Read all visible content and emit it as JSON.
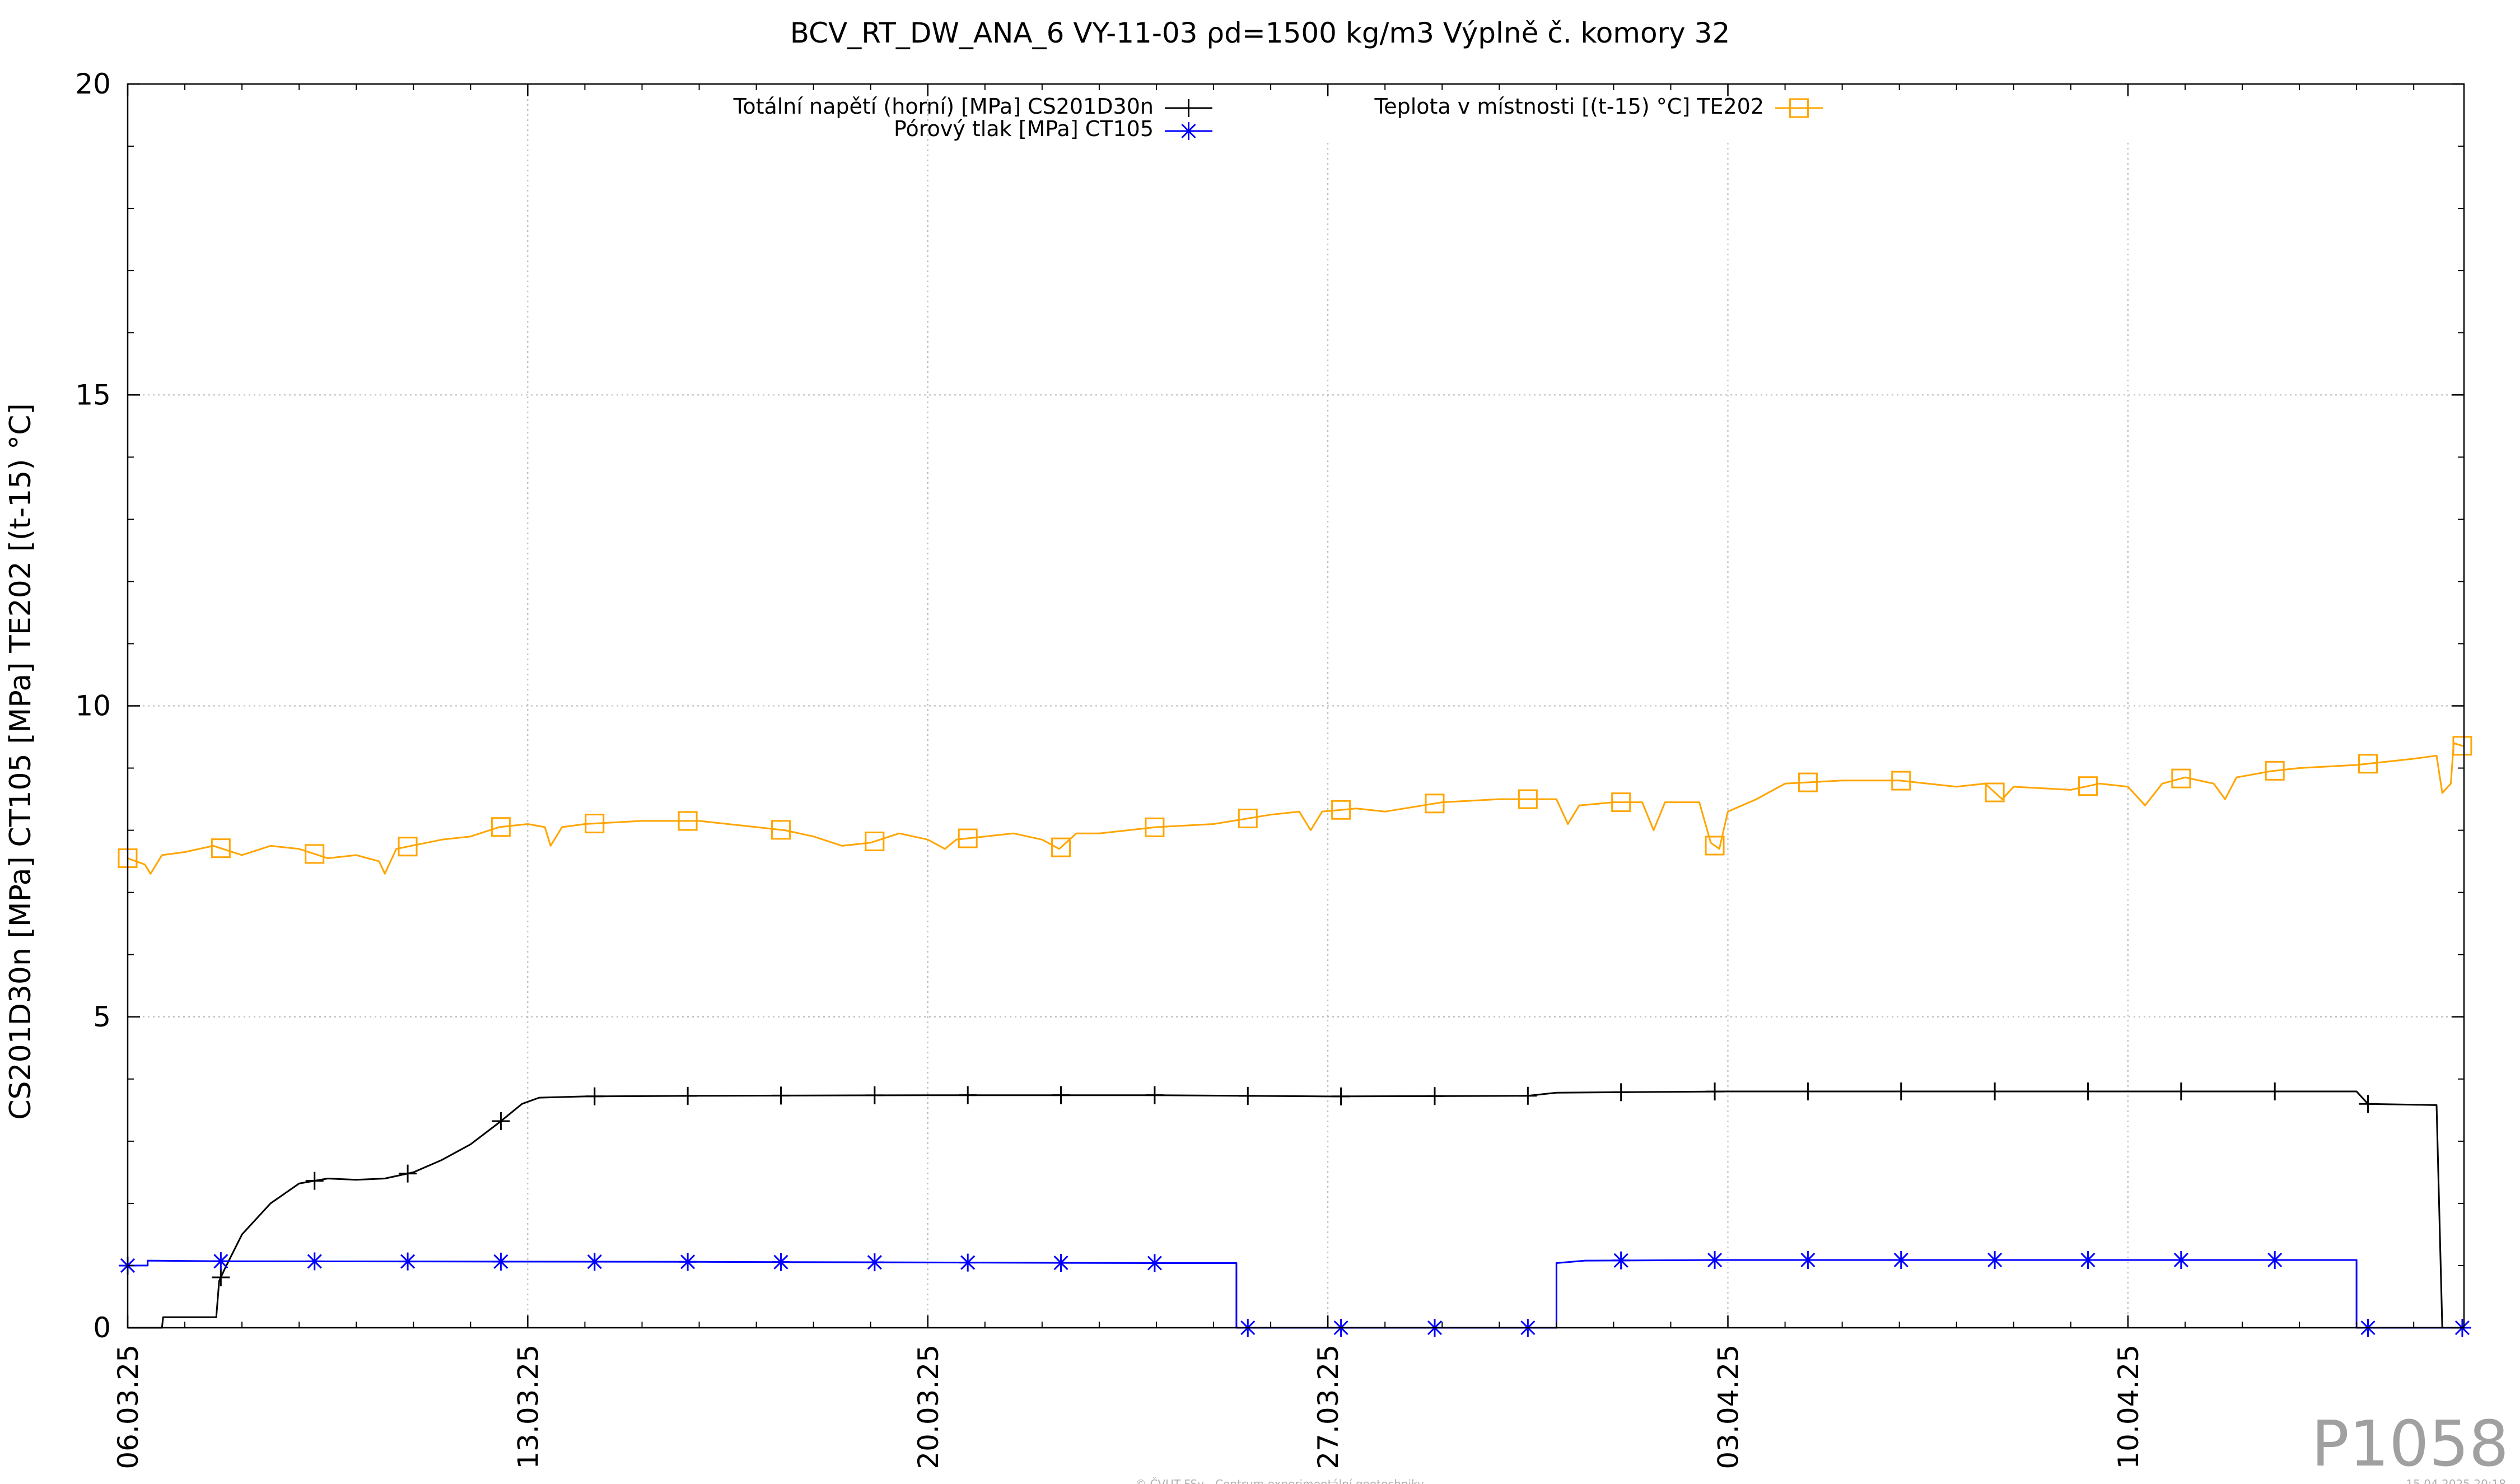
{
  "chart_data": {
    "type": "line",
    "title": "BCV_RT_DW_ANA_6 VY-11-03 ρd=1500 kg/m3 Výplně č. komory 32",
    "ylabel": "CS201D30n [MPa] CT105 [MPa] TE202 [(t-15) °C]",
    "xlabel": "",
    "x_unit": "days since 06.03.25",
    "xlim": [
      0,
      40.88
    ],
    "ylim": [
      0,
      20
    ],
    "y_ticks": [
      "0",
      "5",
      "10",
      "15",
      "20"
    ],
    "x_ticks": [
      {
        "x": 0,
        "label": "06.03.25"
      },
      {
        "x": 7,
        "label": "13.03.25"
      },
      {
        "x": 14,
        "label": "20.03.25"
      },
      {
        "x": 21,
        "label": "27.03.25"
      },
      {
        "x": 28,
        "label": "03.04.25"
      },
      {
        "x": 35,
        "label": "10.04.25"
      }
    ],
    "grid": true,
    "legend_placement": "top-center",
    "series": [
      {
        "name": "Totální napětí (horní) [MPa] CS201D30n",
        "color": "#000000",
        "marker": "plus",
        "points": [
          [
            0,
            0
          ],
          [
            0.6,
            0
          ],
          [
            0.62,
            0.17
          ],
          [
            1.55,
            0.17
          ],
          [
            1.6,
            0.75
          ],
          [
            1.7,
            0.95
          ],
          [
            2.0,
            1.5
          ],
          [
            2.5,
            2.0
          ],
          [
            3.0,
            2.32
          ],
          [
            3.5,
            2.4
          ],
          [
            4.0,
            2.38
          ],
          [
            4.5,
            2.4
          ],
          [
            5.0,
            2.5
          ],
          [
            5.5,
            2.7
          ],
          [
            6.0,
            2.95
          ],
          [
            6.5,
            3.3
          ],
          [
            6.9,
            3.6
          ],
          [
            7.2,
            3.7
          ],
          [
            8,
            3.72
          ],
          [
            10,
            3.73
          ],
          [
            14,
            3.74
          ],
          [
            18,
            3.74
          ],
          [
            21,
            3.72
          ],
          [
            24.5,
            3.73
          ],
          [
            25,
            3.78
          ],
          [
            28,
            3.8
          ],
          [
            32,
            3.8
          ],
          [
            36,
            3.8
          ],
          [
            39,
            3.8
          ],
          [
            39.2,
            3.6
          ],
          [
            40.4,
            3.58
          ],
          [
            40.5,
            0
          ],
          [
            40.88,
            0
          ]
        ],
        "marker_x": [
          1.63,
          3.27,
          4.9,
          6.53,
          8.17,
          9.8,
          11.43,
          13.07,
          14.7,
          16.33,
          17.97,
          19.6,
          21.23,
          22.87,
          24.5,
          26.13,
          27.77,
          29.4,
          31.03,
          32.67,
          34.3,
          35.93,
          37.57,
          39.2
        ]
      },
      {
        "name": "Pórový tlak [MPa] CT105",
        "color": "#0000ff",
        "marker": "star",
        "points": [
          [
            0,
            1.0
          ],
          [
            0.35,
            1.0
          ],
          [
            0.35,
            1.08
          ],
          [
            1.63,
            1.07
          ],
          [
            10,
            1.06
          ],
          [
            18,
            1.04
          ],
          [
            19.4,
            1.04
          ],
          [
            19.4,
            0
          ],
          [
            25.0,
            0
          ],
          [
            25.0,
            1.04
          ],
          [
            25.5,
            1.08
          ],
          [
            28,
            1.09
          ],
          [
            39.0,
            1.09
          ],
          [
            39.0,
            0
          ],
          [
            40.88,
            0
          ]
        ],
        "marker_x": [
          0,
          1.63,
          3.27,
          4.9,
          6.53,
          8.17,
          9.8,
          11.43,
          13.07,
          14.7,
          16.33,
          17.97,
          19.6,
          21.23,
          22.87,
          24.5,
          26.13,
          27.77,
          29.4,
          31.03,
          32.67,
          34.3,
          35.93,
          37.57,
          39.2,
          40.85
        ]
      },
      {
        "name": "Teplota v místnosti [(t-15) °C] TE202",
        "color": "#ffa500",
        "marker": "square",
        "points": [
          [
            0,
            7.55
          ],
          [
            0.3,
            7.45
          ],
          [
            0.4,
            7.3
          ],
          [
            0.6,
            7.6
          ],
          [
            1.0,
            7.65
          ],
          [
            1.5,
            7.75
          ],
          [
            2.0,
            7.6
          ],
          [
            2.5,
            7.75
          ],
          [
            3.0,
            7.7
          ],
          [
            3.5,
            7.55
          ],
          [
            4.0,
            7.6
          ],
          [
            4.4,
            7.5
          ],
          [
            4.5,
            7.3
          ],
          [
            4.7,
            7.7
          ],
          [
            5.5,
            7.85
          ],
          [
            6.0,
            7.9
          ],
          [
            6.5,
            8.05
          ],
          [
            7.0,
            8.1
          ],
          [
            7.3,
            8.05
          ],
          [
            7.4,
            7.75
          ],
          [
            7.6,
            8.05
          ],
          [
            8.0,
            8.1
          ],
          [
            9.0,
            8.15
          ],
          [
            10.0,
            8.15
          ],
          [
            11.0,
            8.05
          ],
          [
            11.5,
            8.0
          ],
          [
            12.0,
            7.9
          ],
          [
            12.5,
            7.75
          ],
          [
            13.0,
            7.8
          ],
          [
            13.5,
            7.95
          ],
          [
            14.0,
            7.85
          ],
          [
            14.3,
            7.7
          ],
          [
            14.5,
            7.85
          ],
          [
            15.0,
            7.9
          ],
          [
            15.5,
            7.95
          ],
          [
            16.0,
            7.85
          ],
          [
            16.3,
            7.7
          ],
          [
            16.6,
            7.95
          ],
          [
            17.0,
            7.95
          ],
          [
            18.0,
            8.05
          ],
          [
            19.0,
            8.1
          ],
          [
            20.0,
            8.25
          ],
          [
            20.5,
            8.3
          ],
          [
            20.7,
            8.0
          ],
          [
            20.9,
            8.3
          ],
          [
            21.5,
            8.35
          ],
          [
            22.0,
            8.3
          ],
          [
            23.0,
            8.45
          ],
          [
            24.0,
            8.5
          ],
          [
            25.0,
            8.5
          ],
          [
            25.2,
            8.1
          ],
          [
            25.4,
            8.4
          ],
          [
            26.0,
            8.45
          ],
          [
            26.5,
            8.45
          ],
          [
            26.7,
            8.0
          ],
          [
            26.9,
            8.45
          ],
          [
            27.5,
            8.45
          ],
          [
            27.7,
            7.8
          ],
          [
            27.85,
            7.7
          ],
          [
            28.0,
            8.3
          ],
          [
            28.5,
            8.5
          ],
          [
            29.0,
            8.75
          ],
          [
            30.0,
            8.8
          ],
          [
            31.0,
            8.8
          ],
          [
            32.0,
            8.7
          ],
          [
            32.5,
            8.75
          ],
          [
            32.8,
            8.5
          ],
          [
            33.0,
            8.7
          ],
          [
            34.0,
            8.65
          ],
          [
            34.5,
            8.75
          ],
          [
            35.0,
            8.7
          ],
          [
            35.3,
            8.4
          ],
          [
            35.6,
            8.75
          ],
          [
            36.0,
            8.85
          ],
          [
            36.5,
            8.75
          ],
          [
            36.7,
            8.5
          ],
          [
            36.9,
            8.85
          ],
          [
            37.5,
            8.95
          ],
          [
            38.0,
            9.0
          ],
          [
            39.0,
            9.05
          ],
          [
            40.0,
            9.15
          ],
          [
            40.4,
            9.2
          ],
          [
            40.5,
            8.6
          ],
          [
            40.65,
            8.75
          ],
          [
            40.7,
            9.4
          ],
          [
            40.88,
            9.35
          ]
        ],
        "marker_x": [
          0,
          1.63,
          3.27,
          4.9,
          6.53,
          8.17,
          9.8,
          11.43,
          13.07,
          14.7,
          16.33,
          17.97,
          19.6,
          21.23,
          22.87,
          24.5,
          26.13,
          27.77,
          29.4,
          31.03,
          32.67,
          34.3,
          35.93,
          37.57,
          39.2,
          40.85
        ]
      }
    ]
  },
  "plot_id": "P1058",
  "footer_center": "© ČVUT FSv - Centrum experimentální geotechniky",
  "footer_right": "15.04.2025 20:18"
}
